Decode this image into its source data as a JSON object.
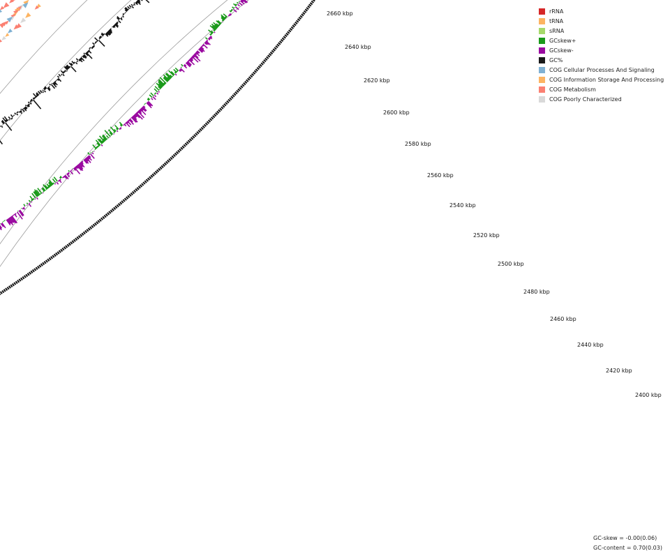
{
  "ticks": [
    {
      "label": "2660 kbp",
      "pos": [
        468,
        22
      ]
    },
    {
      "label": "2640 kbp",
      "pos": [
        494,
        70
      ]
    },
    {
      "label": "2620 kbp",
      "pos": [
        521,
        118
      ]
    },
    {
      "label": "2600 kbp",
      "pos": [
        549,
        164
      ]
    },
    {
      "label": "2580 kbp",
      "pos": [
        580,
        209
      ]
    },
    {
      "label": "2560 kbp",
      "pos": [
        612,
        254
      ]
    },
    {
      "label": "2540 kbp",
      "pos": [
        644,
        297
      ]
    },
    {
      "label": "2520 kbp",
      "pos": [
        678,
        340
      ]
    },
    {
      "label": "2500 kbp",
      "pos": [
        713,
        381
      ]
    },
    {
      "label": "2480 kbp",
      "pos": [
        750,
        421
      ]
    },
    {
      "label": "2460 kbp",
      "pos": [
        788,
        460
      ]
    },
    {
      "label": "2440 kbp",
      "pos": [
        827,
        497
      ]
    },
    {
      "label": "2420 kbp",
      "pos": [
        868,
        534
      ]
    },
    {
      "label": "2400 kbp",
      "pos": [
        910,
        569
      ]
    }
  ],
  "legend": [
    {
      "label": "rRNA",
      "color": "#d62728"
    },
    {
      "label": "tRNA",
      "color": "#fdb462"
    },
    {
      "label": "sRNA",
      "color": "#a6d96a"
    },
    {
      "label": "GCskew+",
      "color": "#1a9a1a"
    },
    {
      "label": "GCskew-",
      "color": "#9a0aa0"
    },
    {
      "label": "GC%",
      "color": "#1a1a1a"
    },
    {
      "label": "COG Cellular Processes And Signaling",
      "color": "#80b1d3"
    },
    {
      "label": "COG Information Storage And Processing",
      "color": "#fdb462"
    },
    {
      "label": "COG Metabolism",
      "color": "#fb8072"
    },
    {
      "label": "COG Poorly Characterized",
      "color": "#d9d9d9"
    }
  ],
  "stats": {
    "gc_skew": "GC-skew = -0.00(0.06)",
    "gc_content": "GC-content = 0.70(0.03)"
  }
}
